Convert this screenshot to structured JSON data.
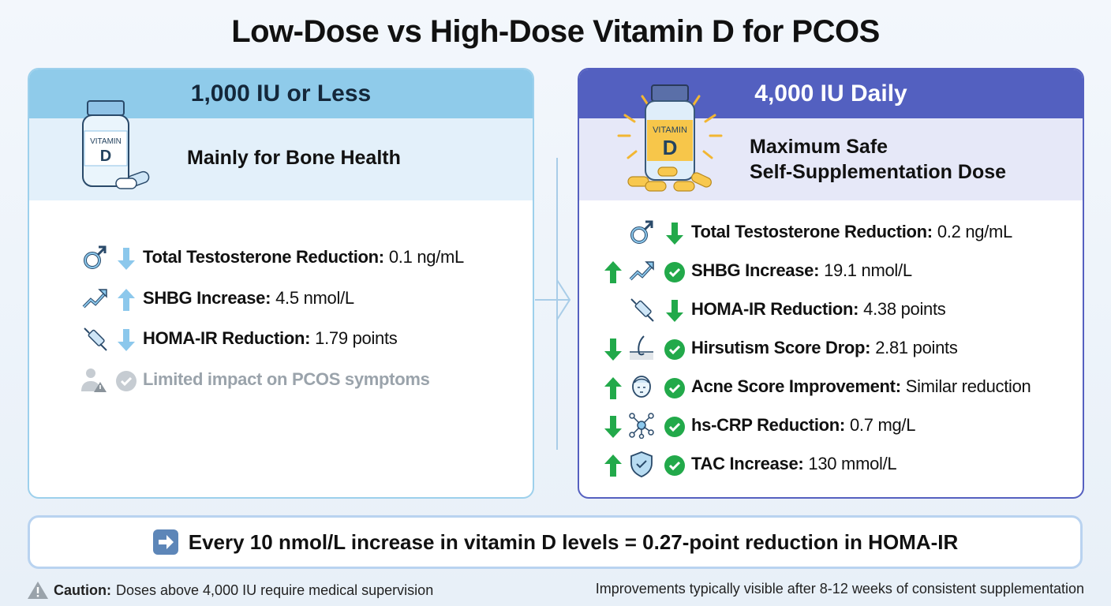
{
  "title": "Low-Dose vs High-Dose Vitamin D for PCOS",
  "low": {
    "header": "1,000 IU or Less",
    "bottle_label_1": "VITAMIN",
    "bottle_label_2": "D",
    "subtitle": "Mainly for Bone Health",
    "rows": [
      {
        "icon": "male-symbol-icon",
        "direction": "down",
        "label": "Total Testosterone Reduction:",
        "value": "0.1 ng/mL"
      },
      {
        "icon": "trend-up-icon",
        "direction": "up",
        "label": "SHBG Increase:",
        "value": "4.5 nmol/L"
      },
      {
        "icon": "syringe-icon",
        "direction": "down",
        "label": "HOMA-IR Reduction:",
        "value": "1.79 points"
      }
    ],
    "note": {
      "icon": "user-warning-icon",
      "text": "Limited impact on PCOS symptoms"
    }
  },
  "high": {
    "header": "4,000 IU Daily",
    "bottle_label_1": "VITAMIN",
    "bottle_label_2": "D",
    "subtitle_1": "Maximum Safe",
    "subtitle_2": "Self-Supplementation Dose",
    "rows": [
      {
        "icon": "male-symbol-icon",
        "direction": "down",
        "check": false,
        "label": "Total Testosterone Reduction:",
        "value": "0.2 ng/mL"
      },
      {
        "icon": "trend-up-icon",
        "direction": "up",
        "check": true,
        "label": "SHBG Increase:",
        "value": "19.1 nmol/L"
      },
      {
        "icon": "syringe-icon",
        "direction": "down",
        "check": false,
        "label": "HOMA-IR Reduction:",
        "value": "4.38 points"
      },
      {
        "icon": "hair-follicle-icon",
        "direction": "down",
        "check": true,
        "label": "Hirsutism Score Drop:",
        "value": "2.81 points"
      },
      {
        "icon": "face-icon",
        "direction": "up",
        "check": true,
        "label": "Acne Score Improvement:",
        "value": "Similar reduction"
      },
      {
        "icon": "molecule-icon",
        "direction": "down",
        "check": true,
        "label": "hs-CRP Reduction:",
        "value": "0.7 mg/L"
      },
      {
        "icon": "shield-check-icon",
        "direction": "up",
        "check": true,
        "label": "TAC Increase:",
        "value": "130 mmol/L"
      }
    ]
  },
  "summary": "Every 10 nmol/L increase in vitamin D levels = 0.27-point reduction in HOMA-IR",
  "footer": {
    "caution_label": "Caution:",
    "caution_text": "Doses above 4,000 IU require medical supervision",
    "note": "Improvements typically visible after 8-12 weeks of consistent supplementation"
  },
  "colors": {
    "low_accent": "#8fcbea",
    "high_accent": "#5360c0",
    "green": "#22a94a",
    "light_arrow": "#8cc8ec"
  }
}
